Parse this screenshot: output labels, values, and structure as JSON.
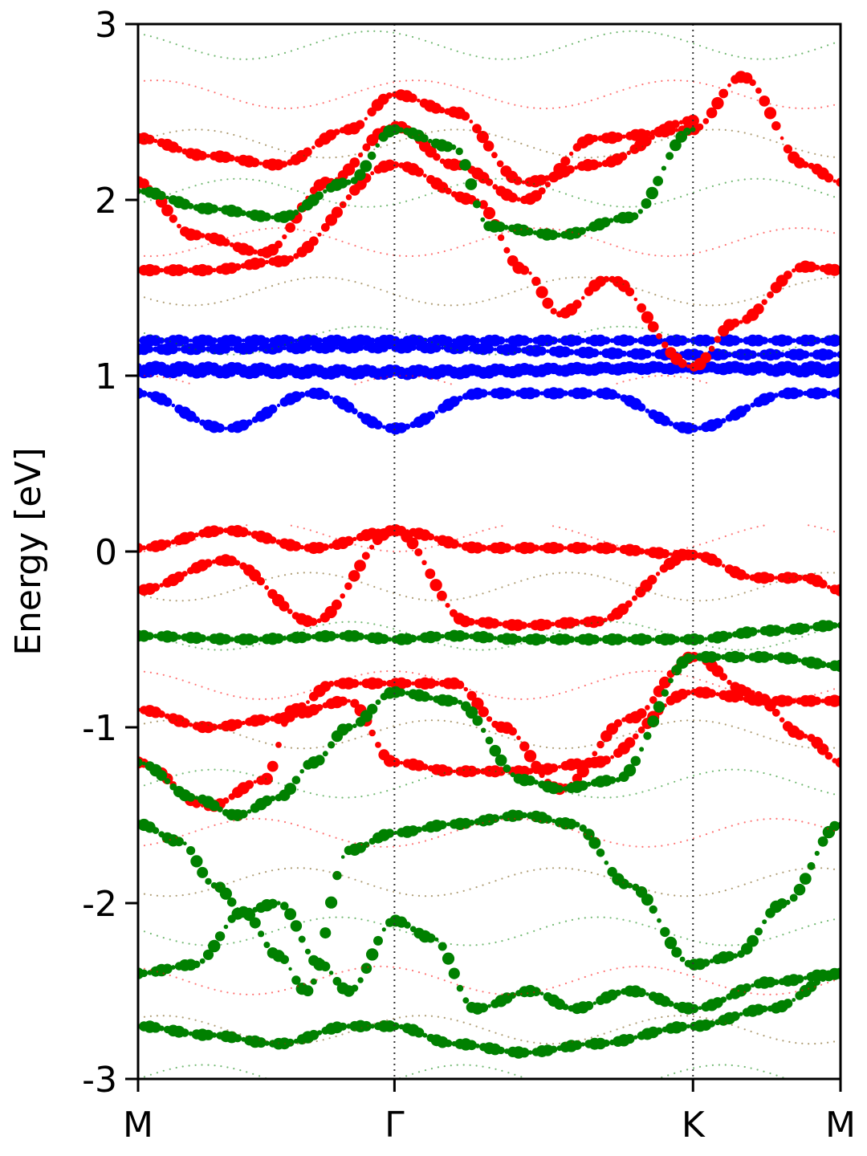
{
  "chart_data": {
    "type": "scatter",
    "subtype": "fat-band structure",
    "ylabel": "Energy [eV]",
    "xlabel": "",
    "ylim": [
      -3,
      3
    ],
    "y_ticks": [
      {
        "value": 3,
        "label": "3"
      },
      {
        "value": 2,
        "label": "2"
      },
      {
        "value": 1,
        "label": "1"
      },
      {
        "value": 0,
        "label": "0"
      },
      {
        "value": -1,
        "label": "-1"
      },
      {
        "value": -2,
        "label": "-2"
      },
      {
        "value": -3,
        "label": "-3"
      }
    ],
    "k_path": [
      {
        "label": "M",
        "position": 0.0
      },
      {
        "label": "Γ",
        "position": 0.365
      },
      {
        "label": "K",
        "position": 0.79
      },
      {
        "label": "M",
        "position": 1.0
      }
    ],
    "grid": "vertical dotted lines at high-symmetry points",
    "legend": "none",
    "colors": {
      "red": "#ff0000",
      "green": "#008000",
      "blue": "#0000ff",
      "olive": "#6b4a00"
    },
    "series": [
      {
        "color": "blue",
        "note": "flat bands",
        "points": [
          [
            0.0,
            1.2
          ],
          [
            0.365,
            1.2
          ],
          [
            0.79,
            1.2
          ],
          [
            1.0,
            1.2
          ]
        ]
      },
      {
        "color": "blue",
        "points": [
          [
            0.0,
            1.15
          ],
          [
            0.365,
            1.16
          ],
          [
            0.79,
            1.12
          ],
          [
            1.0,
            1.12
          ]
        ]
      },
      {
        "color": "blue",
        "points": [
          [
            0.0,
            1.05
          ],
          [
            0.365,
            1.03
          ],
          [
            0.79,
            1.05
          ],
          [
            1.0,
            1.05
          ]
        ]
      },
      {
        "color": "blue",
        "points": [
          [
            0.0,
            1.02
          ],
          [
            0.365,
            1.01
          ],
          [
            0.79,
            1.04
          ],
          [
            1.0,
            1.02
          ]
        ]
      },
      {
        "color": "blue",
        "points": [
          [
            0.0,
            0.9
          ],
          [
            0.125,
            0.7
          ],
          [
            0.25,
            0.9
          ],
          [
            0.365,
            0.7
          ],
          [
            0.49,
            0.9
          ],
          [
            0.66,
            0.9
          ],
          [
            0.79,
            0.7
          ],
          [
            0.93,
            0.9
          ],
          [
            1.0,
            0.9
          ]
        ]
      },
      {
        "color": "red",
        "points": [
          [
            0.0,
            1.6
          ],
          [
            0.1,
            1.6
          ],
          [
            0.2,
            1.65
          ],
          [
            0.365,
            2.2
          ],
          [
            0.48,
            2.0
          ],
          [
            0.55,
            1.6
          ],
          [
            0.6,
            1.35
          ],
          [
            0.67,
            1.55
          ],
          [
            0.79,
            1.05
          ],
          [
            0.85,
            1.3
          ],
          [
            0.95,
            1.62
          ],
          [
            1.0,
            1.6
          ]
        ]
      },
      {
        "color": "red",
        "points": [
          [
            0.0,
            2.1
          ],
          [
            0.08,
            1.8
          ],
          [
            0.18,
            1.7
          ],
          [
            0.27,
            2.1
          ],
          [
            0.365,
            2.42
          ],
          [
            0.45,
            2.2
          ],
          [
            0.55,
            2.0
          ],
          [
            0.65,
            2.35
          ],
          [
            0.79,
            2.4
          ],
          [
            0.86,
            2.7
          ],
          [
            0.95,
            2.2
          ],
          [
            1.0,
            2.1
          ]
        ]
      },
      {
        "color": "green",
        "points": [
          [
            0.0,
            2.05
          ],
          [
            0.1,
            1.95
          ],
          [
            0.2,
            1.9
          ],
          [
            0.3,
            2.1
          ],
          [
            0.365,
            2.4
          ],
          [
            0.45,
            2.3
          ],
          [
            0.5,
            1.85
          ],
          [
            0.6,
            1.8
          ],
          [
            0.7,
            1.9
          ],
          [
            0.79,
            2.4
          ]
        ]
      },
      {
        "color": "red",
        "points": [
          [
            0.0,
            2.35
          ],
          [
            0.1,
            2.25
          ],
          [
            0.2,
            2.2
          ],
          [
            0.3,
            2.4
          ],
          [
            0.365,
            2.6
          ],
          [
            0.45,
            2.5
          ],
          [
            0.55,
            2.1
          ],
          [
            0.65,
            2.2
          ],
          [
            0.79,
            2.45
          ]
        ]
      },
      {
        "color": "red",
        "points": [
          [
            0.0,
            0.02
          ],
          [
            0.125,
            0.12
          ],
          [
            0.25,
            0.02
          ],
          [
            0.365,
            0.12
          ],
          [
            0.49,
            0.02
          ],
          [
            0.65,
            0.02
          ],
          [
            0.79,
            -0.02
          ],
          [
            0.88,
            -0.15
          ],
          [
            0.95,
            -0.15
          ],
          [
            1.0,
            -0.22
          ]
        ]
      },
      {
        "color": "red",
        "points": [
          [
            0.0,
            -0.22
          ],
          [
            0.125,
            -0.05
          ],
          [
            0.25,
            -0.4
          ],
          [
            0.365,
            0.12
          ],
          [
            0.47,
            -0.4
          ],
          [
            0.55,
            -0.42
          ],
          [
            0.65,
            -0.4
          ],
          [
            0.79,
            -0.02
          ]
        ]
      },
      {
        "color": "red",
        "points": [
          [
            0.0,
            -1.2
          ],
          [
            0.1,
            -1.45
          ],
          [
            0.18,
            -1.3
          ],
          [
            0.22,
            -0.9
          ],
          [
            0.28,
            -0.75
          ],
          [
            0.365,
            -0.75
          ],
          [
            0.45,
            -0.75
          ],
          [
            0.52,
            -1.0
          ],
          [
            0.6,
            -1.35
          ],
          [
            0.7,
            -0.95
          ],
          [
            0.79,
            -0.6
          ],
          [
            0.87,
            -0.8
          ],
          [
            0.95,
            -1.05
          ],
          [
            1.0,
            -1.2
          ]
        ]
      },
      {
        "color": "red",
        "points": [
          [
            0.0,
            -0.9
          ],
          [
            0.1,
            -1.0
          ],
          [
            0.2,
            -0.95
          ],
          [
            0.3,
            -0.85
          ],
          [
            0.365,
            -1.2
          ],
          [
            0.45,
            -1.25
          ],
          [
            0.55,
            -1.25
          ],
          [
            0.65,
            -1.2
          ],
          [
            0.79,
            -0.8
          ],
          [
            0.9,
            -0.85
          ],
          [
            1.0,
            -0.85
          ]
        ]
      },
      {
        "color": "green",
        "points": [
          [
            0.0,
            -0.48
          ],
          [
            0.15,
            -0.5
          ],
          [
            0.3,
            -0.48
          ],
          [
            0.365,
            -0.5
          ],
          [
            0.45,
            -0.48
          ],
          [
            0.55,
            -0.5
          ],
          [
            0.65,
            -0.5
          ],
          [
            0.79,
            -0.5
          ],
          [
            0.9,
            -0.45
          ],
          [
            1.0,
            -0.42
          ]
        ]
      },
      {
        "color": "green",
        "points": [
          [
            0.0,
            -1.2
          ],
          [
            0.08,
            -1.4
          ],
          [
            0.14,
            -1.5
          ],
          [
            0.2,
            -1.4
          ],
          [
            0.25,
            -1.2
          ],
          [
            0.3,
            -1.0
          ],
          [
            0.365,
            -0.8
          ],
          [
            0.45,
            -0.85
          ],
          [
            0.55,
            -1.3
          ],
          [
            0.6,
            -1.35
          ],
          [
            0.68,
            -1.3
          ],
          [
            0.79,
            -0.6
          ],
          [
            0.9,
            -0.6
          ],
          [
            1.0,
            -0.65
          ]
        ]
      },
      {
        "color": "green",
        "points": [
          [
            0.0,
            -1.55
          ],
          [
            0.06,
            -1.65
          ],
          [
            0.11,
            -1.9
          ],
          [
            0.15,
            -2.05
          ],
          [
            0.2,
            -2.3
          ],
          [
            0.24,
            -2.5
          ],
          [
            0.3,
            -1.7
          ],
          [
            0.365,
            -1.6
          ],
          [
            0.45,
            -1.55
          ],
          [
            0.55,
            -1.5
          ],
          [
            0.62,
            -1.55
          ],
          [
            0.7,
            -1.9
          ],
          [
            0.79,
            -2.35
          ],
          [
            0.85,
            -2.3
          ],
          [
            0.92,
            -2.0
          ],
          [
            1.0,
            -1.55
          ]
        ]
      },
      {
        "color": "green",
        "points": [
          [
            0.0,
            -2.4
          ],
          [
            0.08,
            -2.35
          ],
          [
            0.15,
            -2.05
          ],
          [
            0.2,
            -2.0
          ],
          [
            0.26,
            -2.35
          ],
          [
            0.3,
            -2.5
          ],
          [
            0.365,
            -2.1
          ],
          [
            0.42,
            -2.2
          ],
          [
            0.48,
            -2.6
          ],
          [
            0.56,
            -2.5
          ],
          [
            0.62,
            -2.6
          ],
          [
            0.7,
            -2.5
          ],
          [
            0.79,
            -2.6
          ],
          [
            0.9,
            -2.45
          ],
          [
            1.0,
            -2.4
          ]
        ]
      },
      {
        "color": "green",
        "points": [
          [
            0.0,
            -2.7
          ],
          [
            0.1,
            -2.75
          ],
          [
            0.2,
            -2.8
          ],
          [
            0.3,
            -2.7
          ],
          [
            0.365,
            -2.7
          ],
          [
            0.45,
            -2.8
          ],
          [
            0.55,
            -2.85
          ],
          [
            0.65,
            -2.8
          ],
          [
            0.79,
            -2.7
          ],
          [
            0.9,
            -2.6
          ],
          [
            1.0,
            -2.4
          ]
        ]
      }
    ]
  }
}
